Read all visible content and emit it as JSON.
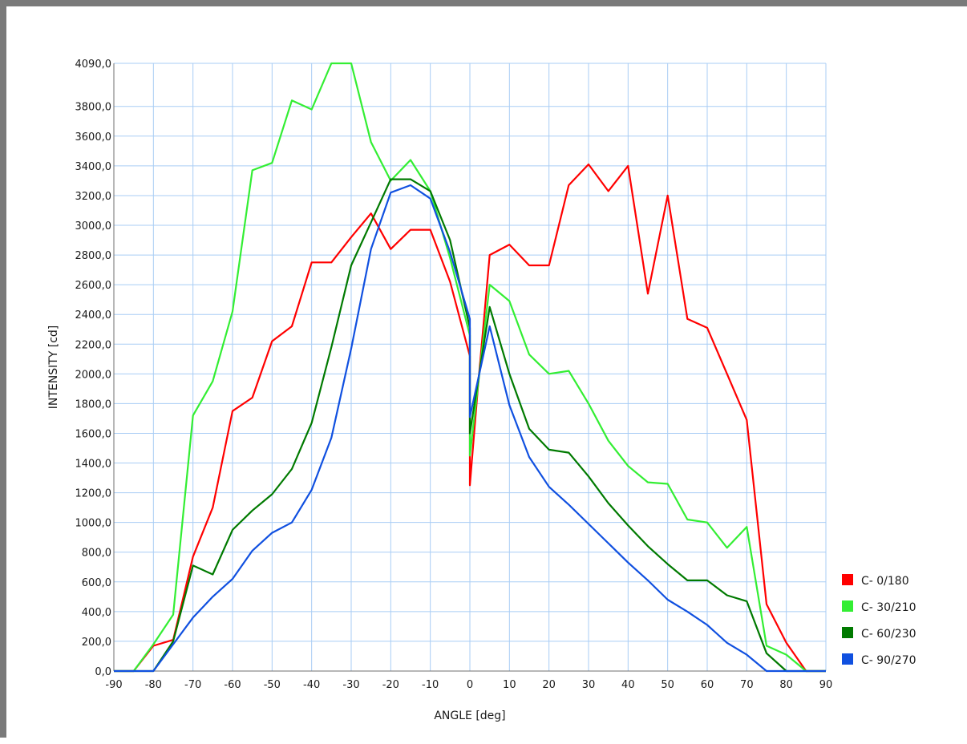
{
  "chart_data": {
    "type": "line",
    "xlabel": "ANGLE [deg]",
    "ylabel": "INTENSITY [cd]",
    "xlim": [
      -90,
      90
    ],
    "ylim": [
      0,
      4090
    ],
    "x_ticks": [
      "-90",
      "-80",
      "-70",
      "-60",
      "-50",
      "-40",
      "-30",
      "-20",
      "-10",
      "0",
      "10",
      "20",
      "30",
      "40",
      "50",
      "60",
      "70",
      "80",
      "90"
    ],
    "y_ticks": [
      "0,0",
      "200,0",
      "400,0",
      "600,0",
      "800,0",
      "1000,0",
      "1200,0",
      "1400,0",
      "1600,0",
      "1800,0",
      "2000,0",
      "2200,0",
      "2400,0",
      "2600,0",
      "2800,0",
      "3000,0",
      "3200,0",
      "3400,0",
      "3600,0",
      "3800,0",
      "4090,0"
    ],
    "y_tick_values": [
      0,
      200,
      400,
      600,
      800,
      1000,
      1200,
      1400,
      1600,
      1800,
      2000,
      2200,
      2400,
      2600,
      2800,
      3000,
      3200,
      3400,
      3600,
      3800,
      4090
    ],
    "grid": true,
    "legend_position": "bottom-right",
    "series": [
      {
        "name": "C- 0/180",
        "color": "#ff0000",
        "points": [
          [
            -90,
            0
          ],
          [
            -85,
            0
          ],
          [
            -80,
            170
          ],
          [
            -75,
            210
          ],
          [
            -70,
            770
          ],
          [
            -65,
            1100
          ],
          [
            -60,
            1750
          ],
          [
            -55,
            1840
          ],
          [
            -50,
            2220
          ],
          [
            -45,
            2320
          ],
          [
            -40,
            2750
          ],
          [
            -35,
            2750
          ],
          [
            -30,
            2920
          ],
          [
            -25,
            3080
          ],
          [
            -20,
            2840
          ],
          [
            -15,
            2970
          ],
          [
            -10,
            2970
          ],
          [
            -5,
            2620
          ],
          [
            0,
            2120
          ],
          [
            0,
            1250
          ],
          [
            2,
            1900
          ],
          [
            5,
            2800
          ],
          [
            10,
            2870
          ],
          [
            15,
            2730
          ],
          [
            20,
            2730
          ],
          [
            25,
            3270
          ],
          [
            30,
            3410
          ],
          [
            35,
            3230
          ],
          [
            40,
            3400
          ],
          [
            45,
            2540
          ],
          [
            50,
            3200
          ],
          [
            55,
            2370
          ],
          [
            60,
            2310
          ],
          [
            65,
            2000
          ],
          [
            70,
            1690
          ],
          [
            75,
            450
          ],
          [
            80,
            190
          ],
          [
            85,
            0
          ],
          [
            90,
            0
          ]
        ]
      },
      {
        "name": "C- 30/210",
        "color": "#33ee33",
        "points": [
          [
            -90,
            0
          ],
          [
            -85,
            0
          ],
          [
            -80,
            180
          ],
          [
            -75,
            380
          ],
          [
            -70,
            1720
          ],
          [
            -65,
            1950
          ],
          [
            -60,
            2420
          ],
          [
            -55,
            3370
          ],
          [
            -50,
            3420
          ],
          [
            -45,
            3840
          ],
          [
            -40,
            3780
          ],
          [
            -35,
            4090
          ],
          [
            -30,
            4090
          ],
          [
            -25,
            3560
          ],
          [
            -20,
            3300
          ],
          [
            -15,
            3440
          ],
          [
            -10,
            3230
          ],
          [
            -5,
            2780
          ],
          [
            0,
            2260
          ],
          [
            0,
            1450
          ],
          [
            5,
            2600
          ],
          [
            10,
            2490
          ],
          [
            15,
            2130
          ],
          [
            20,
            2000
          ],
          [
            25,
            2020
          ],
          [
            30,
            1800
          ],
          [
            35,
            1550
          ],
          [
            40,
            1380
          ],
          [
            45,
            1270
          ],
          [
            50,
            1260
          ],
          [
            55,
            1020
          ],
          [
            60,
            1000
          ],
          [
            65,
            830
          ],
          [
            70,
            970
          ],
          [
            75,
            170
          ],
          [
            80,
            110
          ],
          [
            85,
            0
          ],
          [
            90,
            0
          ]
        ]
      },
      {
        "name": "C- 60/230",
        "color": "#007a00",
        "points": [
          [
            -90,
            0
          ],
          [
            -85,
            0
          ],
          [
            -80,
            0
          ],
          [
            -75,
            200
          ],
          [
            -70,
            710
          ],
          [
            -65,
            650
          ],
          [
            -60,
            950
          ],
          [
            -55,
            1080
          ],
          [
            -50,
            1190
          ],
          [
            -45,
            1360
          ],
          [
            -40,
            1670
          ],
          [
            -35,
            2180
          ],
          [
            -30,
            2730
          ],
          [
            -25,
            3020
          ],
          [
            -20,
            3310
          ],
          [
            -15,
            3310
          ],
          [
            -10,
            3230
          ],
          [
            -5,
            2900
          ],
          [
            0,
            2310
          ],
          [
            0,
            1600
          ],
          [
            5,
            2450
          ],
          [
            10,
            2000
          ],
          [
            15,
            1630
          ],
          [
            20,
            1490
          ],
          [
            25,
            1470
          ],
          [
            30,
            1310
          ],
          [
            35,
            1130
          ],
          [
            40,
            980
          ],
          [
            45,
            840
          ],
          [
            50,
            720
          ],
          [
            55,
            610
          ],
          [
            60,
            610
          ],
          [
            65,
            510
          ],
          [
            70,
            470
          ],
          [
            75,
            120
          ],
          [
            80,
            0
          ],
          [
            85,
            0
          ],
          [
            90,
            0
          ]
        ]
      },
      {
        "name": "C- 90/270",
        "color": "#1050e0",
        "points": [
          [
            -90,
            0
          ],
          [
            -85,
            0
          ],
          [
            -80,
            0
          ],
          [
            -75,
            180
          ],
          [
            -70,
            360
          ],
          [
            -65,
            500
          ],
          [
            -60,
            620
          ],
          [
            -55,
            810
          ],
          [
            -50,
            930
          ],
          [
            -45,
            1000
          ],
          [
            -40,
            1220
          ],
          [
            -35,
            1570
          ],
          [
            -30,
            2170
          ],
          [
            -25,
            2840
          ],
          [
            -20,
            3220
          ],
          [
            -15,
            3270
          ],
          [
            -10,
            3180
          ],
          [
            -5,
            2820
          ],
          [
            0,
            2370
          ],
          [
            0,
            1710
          ],
          [
            5,
            2320
          ],
          [
            10,
            1790
          ],
          [
            15,
            1440
          ],
          [
            20,
            1240
          ],
          [
            25,
            1120
          ],
          [
            30,
            990
          ],
          [
            35,
            860
          ],
          [
            40,
            730
          ],
          [
            45,
            610
          ],
          [
            50,
            480
          ],
          [
            55,
            400
          ],
          [
            60,
            310
          ],
          [
            65,
            190
          ],
          [
            70,
            110
          ],
          [
            75,
            0
          ],
          [
            80,
            0
          ],
          [
            85,
            0
          ],
          [
            90,
            0
          ]
        ]
      }
    ]
  }
}
